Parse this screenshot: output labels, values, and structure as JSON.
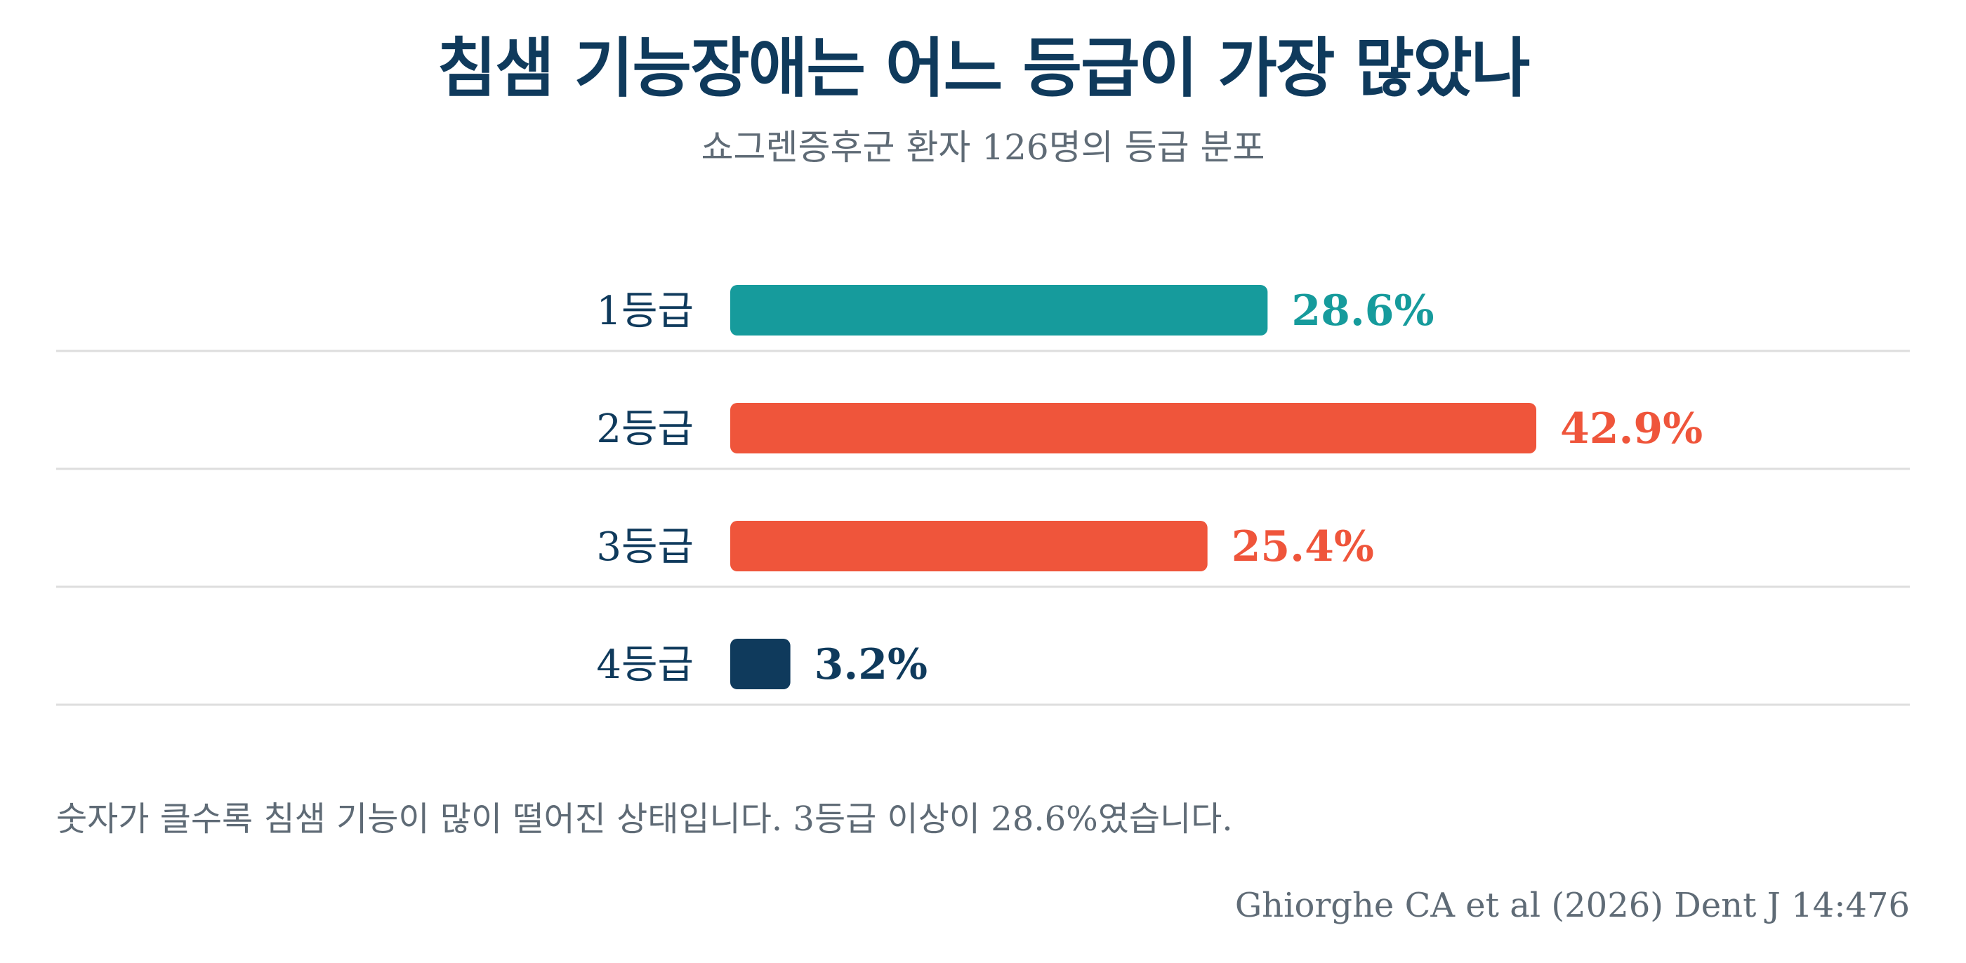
{
  "title": "침샘 기능장애는 어느 등급이 가장 많았나",
  "subtitle": "쇼그렌증후군 환자 126명의 등급 분포",
  "footnote": "숫자가 클수록 침샘 기능이 많이 떨어진 상태입니다. 3등급 이상이 28.6%였습니다.",
  "source": "Ghiorghe CA et al (2026) Dent J 14:476",
  "colors": {
    "title": "#0f3a5c",
    "muted": "#5f6b76",
    "gridline": "#dedede"
  },
  "chart_data": {
    "type": "bar",
    "orientation": "horizontal",
    "categories": [
      "1등급",
      "2등급",
      "3등급",
      "4등급"
    ],
    "values": [
      28.6,
      42.9,
      25.4,
      3.2
    ],
    "value_labels": [
      "28.6%",
      "42.9%",
      "25.4%",
      "3.2%"
    ],
    "unit": "%",
    "bar_colors": [
      "#169b9c",
      "#ef553b",
      "#ef553b",
      "#0f3a5c"
    ],
    "xlim": [
      0,
      42.9
    ],
    "grid": false,
    "legend": "none"
  }
}
